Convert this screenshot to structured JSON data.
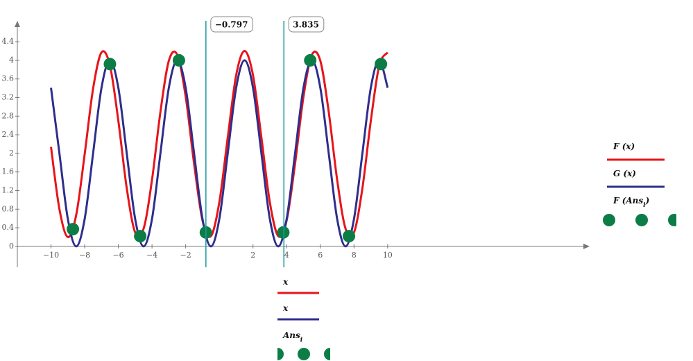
{
  "chart_data": {
    "type": "line",
    "x": [
      -10,
      -9.5,
      -9,
      -8.5,
      -8,
      -7.5,
      -7,
      -6.5,
      -6,
      -5.5,
      -5,
      -4.5,
      -4,
      -3.5,
      -3,
      -2.5,
      -2,
      -1.5,
      -1,
      -0.5,
      0,
      0.5,
      1,
      1.5,
      2,
      2.5,
      3,
      3.5,
      4,
      4.5,
      5,
      5.5,
      6,
      6.5,
      7,
      7.5,
      8,
      8.5,
      9,
      9.5,
      10
    ],
    "series": [
      {
        "name": "F (x)",
        "color": "#e8141b",
        "values": [
          2.14,
          0.8,
          0.2,
          0.68,
          1.98,
          3.39,
          4.17,
          3.89,
          2.7,
          1.25,
          0.3,
          0.38,
          1.43,
          2.89,
          3.99,
          4.12,
          3.22,
          1.78,
          0.56,
          0.22,
          0.95,
          2.34,
          3.68,
          4.2,
          3.68,
          2.34,
          0.95,
          0.22,
          0.56,
          1.78,
          3.22,
          4.12,
          3.99,
          2.89,
          1.43,
          0.38,
          0.3,
          1.25,
          2.7,
          3.89,
          4.17
        ]
      },
      {
        "name": "G (x)",
        "color": "#2e2e8c",
        "values": [
          3.41,
          2,
          0.59,
          0,
          0.59,
          2,
          3.41,
          4,
          3.41,
          2,
          0.59,
          0,
          0.59,
          2,
          3.41,
          4,
          3.41,
          2,
          0.59,
          0,
          0.59,
          2,
          3.41,
          4,
          3.41,
          2,
          0.59,
          0,
          0.59,
          2,
          3.41,
          4,
          3.41,
          2,
          0.59,
          0,
          0.59,
          2,
          3.41,
          4,
          3.41
        ]
      },
      {
        "type": "scatter",
        "name_parts": [
          "F (Ans",
          "i",
          ")"
        ],
        "color": "#0d7d46",
        "x": [
          -8.7,
          -6.5,
          -4.7,
          -2.4,
          -0.8,
          3.8,
          5.4,
          7.7,
          9.6
        ],
        "values": [
          0.37,
          3.92,
          0.22,
          4.0,
          0.3,
          0.3,
          4.0,
          0.22,
          3.92
        ]
      }
    ],
    "x_legend": [
      [
        "x"
      ],
      [
        "x"
      ],
      [
        "Ans",
        "i"
      ]
    ],
    "cursors": [
      {
        "value": -0.797,
        "label": "−0.797"
      },
      {
        "value": 3.835,
        "label": "3.835"
      }
    ],
    "cursor_color": "#1a9aa0",
    "xlim": [
      -12,
      22
    ],
    "ylim": [
      -0.45,
      4.85
    ],
    "xticks": [
      {
        "value": -10,
        "label": "−10"
      },
      {
        "value": -8,
        "label": "−8"
      },
      {
        "value": -6,
        "label": "−6"
      },
      {
        "value": -4,
        "label": "−4"
      },
      {
        "value": -2,
        "label": "−2"
      },
      2,
      4,
      6,
      8,
      10
    ],
    "yticks": [
      0,
      0.4,
      0.8,
      1.2,
      1.6,
      2,
      2.4,
      2.8,
      3.2,
      3.6,
      4,
      4.4
    ]
  }
}
